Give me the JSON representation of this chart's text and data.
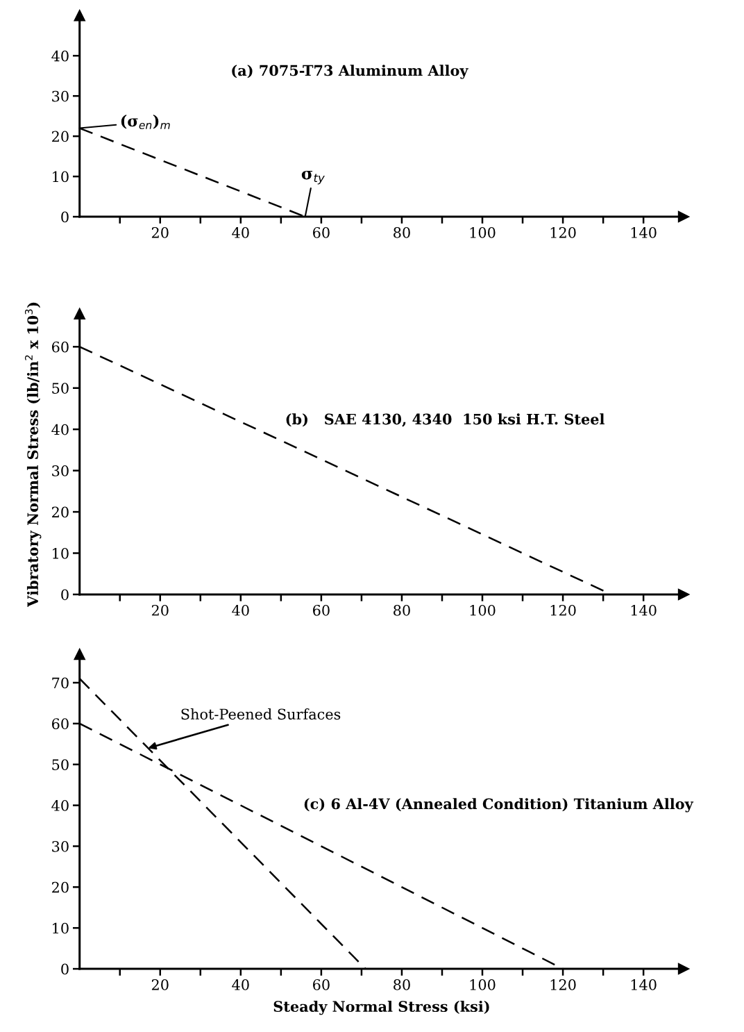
{
  "chart_data": [
    {
      "type": "line",
      "title": "(a) 7075-T73 Aluminum Alloy",
      "x": [
        0,
        56
      ],
      "series": [
        {
          "color": "#000000",
          "values": [
            22,
            0
          ]
        }
      ],
      "xlim": [
        0,
        150
      ],
      "ylim": [
        0,
        50
      ],
      "xticks": [
        {
          "value": 10,
          "label": null
        },
        20,
        {
          "value": 30,
          "label": null
        },
        40,
        {
          "value": 50,
          "label": null
        },
        60,
        {
          "value": 70,
          "label": null
        },
        80,
        {
          "value": 90,
          "label": null
        },
        100,
        {
          "value": 110,
          "label": null
        },
        120,
        {
          "value": 130,
          "label": null
        },
        140
      ],
      "yticks": [
        0,
        10,
        20,
        30,
        40
      ],
      "line_style": "dashed",
      "grid": false,
      "legend": false,
      "annotations": [
        {
          "text": "(σ$_{en}$)$_{m}$",
          "x": 0,
          "y": 22
        },
        {
          "text": "σ$_{ty}$",
          "x": 56,
          "y": 0
        }
      ]
    },
    {
      "type": "line",
      "title": "(b)   SAE 4130, 4340  150 ksi H.T. Steel",
      "ylabel": "Vibratory Normal Stress (lb/in$^{2}$ x 10$^{3}$)",
      "x": [
        0,
        132
      ],
      "series": [
        {
          "color": "#000000",
          "values": [
            60,
            0
          ]
        }
      ],
      "xlim": [
        0,
        150
      ],
      "ylim": [
        0,
        68
      ],
      "xticks": [
        {
          "value": 10,
          "label": null
        },
        20,
        {
          "value": 30,
          "label": null
        },
        40,
        {
          "value": 50,
          "label": null
        },
        60,
        {
          "value": 70,
          "label": null
        },
        80,
        {
          "value": 90,
          "label": null
        },
        100,
        {
          "value": 110,
          "label": null
        },
        120,
        {
          "value": 130,
          "label": null
        },
        140
      ],
      "yticks": [
        0,
        10,
        20,
        30,
        40,
        50,
        60
      ],
      "line_style": "dashed",
      "grid": false,
      "legend": false
    },
    {
      "type": "line",
      "title": "(c) 6 Al-4V (Annealed Condition) Titanium Alloy",
      "xlabel": "Steady Normal Stress (ksi)",
      "series": [
        {
          "color": "#000000",
          "x": [
            0,
            120
          ],
          "values": [
            60,
            0
          ]
        },
        {
          "color": "#000000",
          "x": [
            0,
            71
          ],
          "values": [
            71,
            0
          ]
        }
      ],
      "xlim": [
        0,
        150
      ],
      "ylim": [
        0,
        77
      ],
      "xticks": [
        {
          "value": 10,
          "label": null
        },
        20,
        {
          "value": 30,
          "label": null
        },
        40,
        {
          "value": 50,
          "label": null
        },
        60,
        {
          "value": 70,
          "label": null
        },
        80,
        {
          "value": 90,
          "label": null
        },
        100,
        {
          "value": 110,
          "label": null
        },
        120,
        {
          "value": 130,
          "label": null
        },
        140
      ],
      "yticks": [
        0,
        10,
        20,
        30,
        40,
        50,
        60,
        70
      ],
      "line_style": "dashed",
      "grid": false,
      "legend": false,
      "annotations": [
        {
          "text": "Shot-Peened Surfaces",
          "x": 17,
          "y": 54
        }
      ]
    }
  ]
}
